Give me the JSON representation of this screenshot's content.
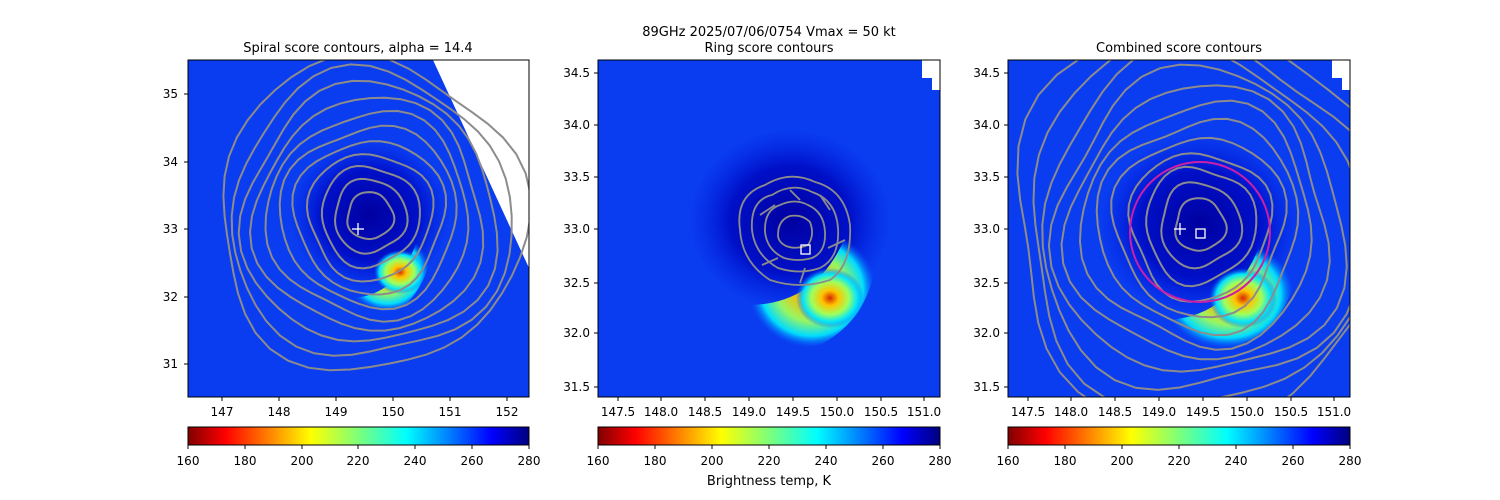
{
  "suptitle_line1": "89GHz  2025/07/06/0754    Vmax = 50 kt",
  "colorbar": {
    "label": "Brightness temp, K",
    "range": [
      160,
      280
    ],
    "ticks": [
      "160",
      "180",
      "200",
      "220",
      "240",
      "260",
      "280"
    ],
    "colormap": "jet_r"
  },
  "colors": {
    "contour": "#8c8c8c",
    "ring": "#cc1fa8",
    "marker": "#ffffff",
    "warm_core": "#d42a00"
  },
  "chart_data": [
    {
      "type": "heatmap",
      "title": "Spiral score contours, alpha = 14.4",
      "xlim": [
        146.35,
        152.35
      ],
      "ylim": [
        30.5,
        35.5
      ],
      "xticks": [
        "147",
        "148",
        "149",
        "150",
        "151",
        "152"
      ],
      "yticks": [
        "31",
        "32",
        "33",
        "34",
        "35"
      ],
      "contour_center": [
        149.6,
        33.1
      ],
      "cross_marker": [
        149.35,
        33.0
      ],
      "warm_core": [
        150.1,
        32.35
      ],
      "contour_levels": 11,
      "swath_edge": [
        [
          150.8,
          35.5
        ],
        [
          152.35,
          32.4
        ]
      ]
    },
    {
      "type": "heatmap",
      "title": "Ring score contours",
      "xlim": [
        147.4,
        151.3
      ],
      "ylim": [
        31.4,
        34.65
      ],
      "xticks": [
        "147.5",
        "148.0",
        "148.5",
        "149.0",
        "149.5",
        "150.0",
        "150.5",
        "151.0"
      ],
      "yticks": [
        "31.5",
        "32.0",
        "32.5",
        "33.0",
        "33.5",
        "34.0",
        "34.5"
      ],
      "square_marker": [
        149.78,
        32.8
      ],
      "warm_core": [
        150.05,
        32.3
      ],
      "contour_region": [
        [
          149.0,
          32.45
        ],
        [
          150.5,
          33.45
        ]
      ]
    },
    {
      "type": "heatmap",
      "title": "Combined score contours",
      "xlim": [
        147.4,
        151.3
      ],
      "ylim": [
        31.4,
        34.65
      ],
      "xticks": [
        "147.5",
        "148.0",
        "148.5",
        "149.0",
        "149.5",
        "150.0",
        "150.5",
        "151.0"
      ],
      "yticks": [
        "31.5",
        "32.0",
        "32.5",
        "33.0",
        "33.5",
        "34.0",
        "34.5"
      ],
      "contour_center": [
        149.65,
        32.95
      ],
      "cross_marker": [
        149.4,
        33.0
      ],
      "square_marker": [
        149.62,
        32.95
      ],
      "warm_core": [
        150.05,
        32.3
      ],
      "ring_circle": {
        "center": [
          149.62,
          33.0
        ],
        "radius_deg": 0.6
      },
      "contour_levels": 12
    }
  ]
}
